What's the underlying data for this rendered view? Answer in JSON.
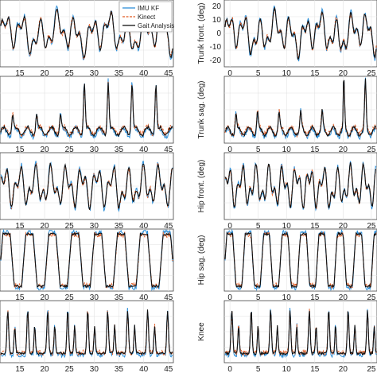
{
  "colors": {
    "imu_kf": "#2e8fd8",
    "kinect": "#e25b22",
    "gait_analysis": "#111111"
  },
  "legend": {
    "items": [
      "IMU KF",
      "Kinect",
      "Gait Analysis"
    ]
  },
  "chart_data": [
    {
      "type": "line",
      "panel": "left-1",
      "xlabel": "",
      "ylabel": "",
      "xlim": [
        11,
        46
      ],
      "xticks": [
        "15",
        "20",
        "25",
        "30",
        "35",
        "40",
        "45"
      ],
      "grid": true,
      "legend": "top-right",
      "series": [
        {
          "name": "IMU KF"
        },
        {
          "name": "Kinect"
        },
        {
          "name": "Gait Analysis"
        }
      ]
    },
    {
      "type": "line",
      "panel": "left-2",
      "xlabel": "",
      "ylabel": "",
      "xlim": [
        11,
        46
      ],
      "xticks": [
        "15",
        "20",
        "25",
        "30",
        "35",
        "40",
        "45"
      ],
      "grid": true
    },
    {
      "type": "line",
      "panel": "left-3",
      "xlabel": "",
      "ylabel": "",
      "xlim": [
        11,
        46
      ],
      "xticks": [
        "15",
        "20",
        "25",
        "30",
        "35",
        "40",
        "45"
      ],
      "grid": true
    },
    {
      "type": "line",
      "panel": "left-4",
      "xlabel": "",
      "ylabel": "",
      "xlim": [
        11,
        46
      ],
      "xticks": [
        "15",
        "20",
        "25",
        "30",
        "35",
        "40",
        "45"
      ],
      "grid": true
    },
    {
      "type": "line",
      "panel": "left-5",
      "xlabel": "",
      "ylabel": "",
      "xlim": [
        11,
        46
      ],
      "xticks": [
        "15",
        "20",
        "25",
        "30",
        "35",
        "40",
        "45"
      ],
      "grid": true
    },
    {
      "type": "line",
      "panel": "right-1",
      "ylabel": "Trunk front. (deg)",
      "xlim": [
        -1,
        26
      ],
      "ylim": [
        -20,
        20
      ],
      "xticks": [
        "0",
        "5",
        "10",
        "15",
        "20",
        "25"
      ],
      "yticks": [
        "20",
        "10",
        "0",
        "-10",
        "-20"
      ],
      "grid": true
    },
    {
      "type": "line",
      "panel": "right-2",
      "ylabel": "Trunk sag. (deg)",
      "xlim": [
        -1,
        26
      ],
      "xticks": [
        "0",
        "5",
        "10",
        "15",
        "20",
        "25"
      ],
      "grid": true
    },
    {
      "type": "line",
      "panel": "right-3",
      "ylabel": "Hip front. (deg)",
      "xlim": [
        -1,
        26
      ],
      "xticks": [
        "0",
        "5",
        "10",
        "15",
        "20",
        "25"
      ],
      "grid": true
    },
    {
      "type": "line",
      "panel": "right-4",
      "ylabel": "Hip sag. (deg)",
      "xlim": [
        -1,
        26
      ],
      "xticks": [
        "0",
        "5",
        "10",
        "15",
        "20",
        "25"
      ],
      "grid": true
    },
    {
      "type": "line",
      "panel": "right-5",
      "ylabel": "Knee",
      "xlim": [
        -1,
        26
      ],
      "xticks": [
        "0",
        "5",
        "10",
        "15",
        "20",
        "25"
      ],
      "grid": true
    }
  ]
}
